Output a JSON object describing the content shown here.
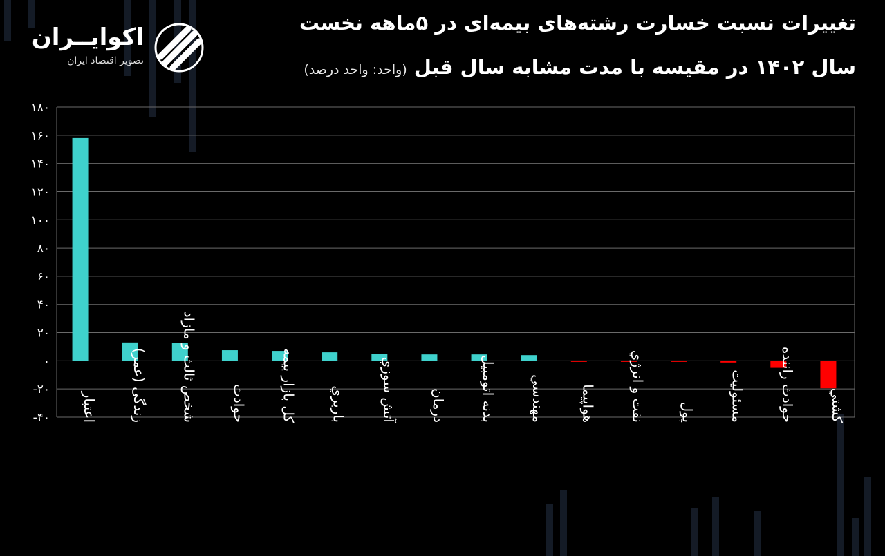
{
  "header": {
    "title_line1": "تغییرات نسبت خسارت رشته‌های بیمه‌ای در ۵ماهه نخست",
    "title_line2": "سال ۱۴۰۲ در مقیسه با مدت مشابه سال قبل",
    "unit_note": "(واحد: واحد درصد)"
  },
  "brand": {
    "name": "اکوایــران",
    "tagline": "تصویر اقتصاد ایران"
  },
  "colors": {
    "positive": "#3fd1cc",
    "negative": "#ff0000",
    "background": "#000000",
    "grid": "#6a6a6a"
  },
  "chart_data": {
    "type": "bar",
    "categories": [
      "اعتبار",
      "زندگی (عمر)",
      "شخص ثالث و مازاد",
      "حوادث",
      "کل بازار بیمه",
      "باربري",
      "آتش سوزي",
      "درمان",
      "بدنه اتومبیل",
      "مهندسي",
      "هواپیما",
      "نفت و انرژي",
      "پول",
      "مسئولیت",
      "حوادث راننده",
      "کشتي"
    ],
    "values": [
      158,
      13,
      12.5,
      7.5,
      7,
      6,
      5,
      4.5,
      4.5,
      4,
      -0.3,
      -0.7,
      -0.7,
      -1.2,
      -5,
      -19.5
    ],
    "ylim": [
      -40,
      180
    ],
    "yticks": [
      -40,
      -20,
      0,
      20,
      40,
      60,
      80,
      100,
      120,
      140,
      160,
      180
    ],
    "ytick_labels": [
      "-۴۰",
      "-۲۰",
      "۰",
      "۲۰",
      "۴۰",
      "۶۰",
      "۸۰",
      "۱۰۰",
      "۱۲۰",
      "۱۴۰",
      "۱۶۰",
      "۱۸۰"
    ],
    "grid": true,
    "title": "",
    "xlabel": "",
    "ylabel": ""
  }
}
